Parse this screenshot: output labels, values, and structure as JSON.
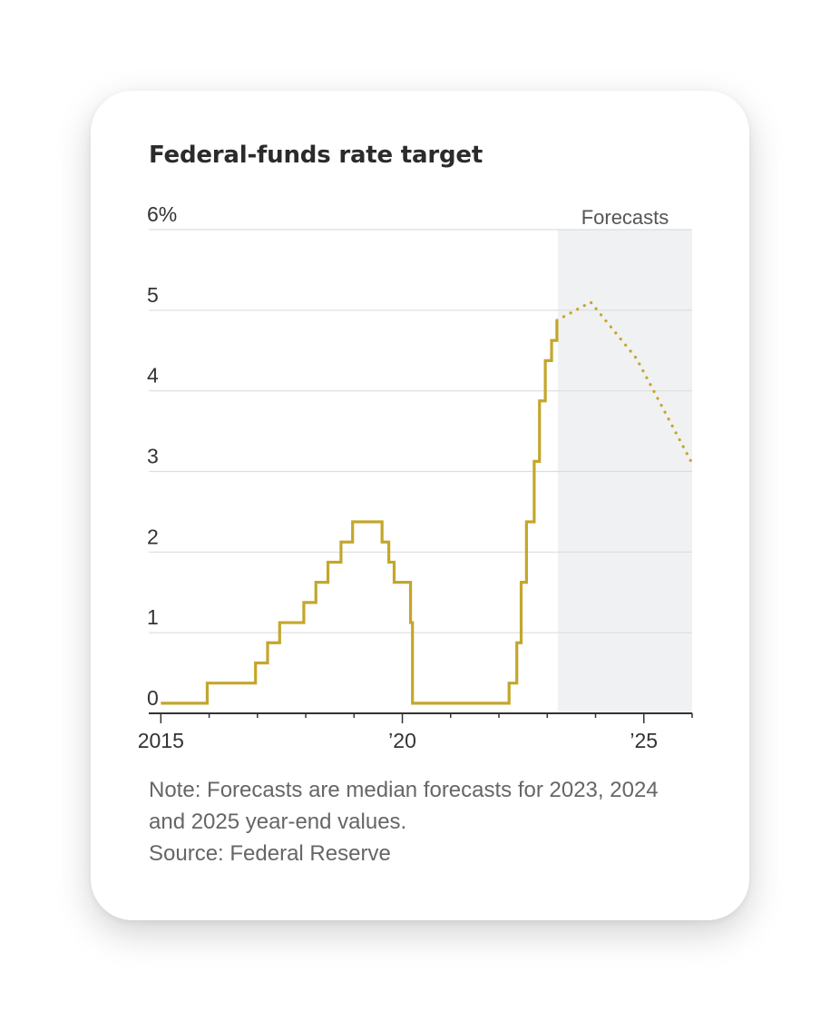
{
  "chart_data": {
    "type": "line",
    "title": "Federal-funds rate target",
    "xlabel": "",
    "ylabel": "",
    "ylim": [
      0,
      6
    ],
    "xlim": [
      2014.75,
      2026.0
    ],
    "y_ticks": [
      {
        "value": 0,
        "label": "0"
      },
      {
        "value": 1,
        "label": "1"
      },
      {
        "value": 2,
        "label": "2"
      },
      {
        "value": 3,
        "label": "3"
      },
      {
        "value": 4,
        "label": "4"
      },
      {
        "value": 5,
        "label": "5"
      },
      {
        "value": 6,
        "label": "6%"
      }
    ],
    "x_ticks": [
      {
        "value": 2015,
        "label": "2015"
      },
      {
        "value": 2020,
        "label": "’20"
      },
      {
        "value": 2025,
        "label": "’25"
      }
    ],
    "x_minor_ticks": [
      2016,
      2017,
      2018,
      2019,
      2021,
      2022,
      2023,
      2024,
      2026
    ],
    "forecast_region": {
      "start": 2023.22,
      "end": 2026.0,
      "label": "Forecasts"
    },
    "series": [
      {
        "name": "Federal-funds rate target",
        "style": "step",
        "color": "#c4a62c",
        "points": [
          {
            "x": 2015.0,
            "y": 0.125
          },
          {
            "x": 2015.96,
            "y": 0.375
          },
          {
            "x": 2016.96,
            "y": 0.625
          },
          {
            "x": 2017.21,
            "y": 0.875
          },
          {
            "x": 2017.46,
            "y": 1.125
          },
          {
            "x": 2017.96,
            "y": 1.375
          },
          {
            "x": 2018.21,
            "y": 1.625
          },
          {
            "x": 2018.46,
            "y": 1.875
          },
          {
            "x": 2018.73,
            "y": 2.125
          },
          {
            "x": 2018.97,
            "y": 2.375
          },
          {
            "x": 2019.58,
            "y": 2.125
          },
          {
            "x": 2019.72,
            "y": 1.875
          },
          {
            "x": 2019.83,
            "y": 1.625
          },
          {
            "x": 2020.17,
            "y": 1.125
          },
          {
            "x": 2020.21,
            "y": 0.125
          },
          {
            "x": 2022.21,
            "y": 0.375
          },
          {
            "x": 2022.37,
            "y": 0.875
          },
          {
            "x": 2022.46,
            "y": 1.625
          },
          {
            "x": 2022.57,
            "y": 2.375
          },
          {
            "x": 2022.73,
            "y": 3.125
          },
          {
            "x": 2022.84,
            "y": 3.875
          },
          {
            "x": 2022.96,
            "y": 4.375
          },
          {
            "x": 2023.09,
            "y": 4.625
          },
          {
            "x": 2023.2,
            "y": 4.875
          }
        ]
      },
      {
        "name": "Median forecast",
        "style": "dotted",
        "color": "#c4a62c",
        "points": [
          {
            "x": 2023.2,
            "y": 4.875
          },
          {
            "x": 2023.9,
            "y": 5.1
          },
          {
            "x": 2024.85,
            "y": 4.4
          },
          {
            "x": 2026.0,
            "y": 3.1
          }
        ]
      }
    ]
  },
  "note": {
    "line1": "Note: Forecasts are median forecasts for 2023, 2024",
    "line2": "and 2025 year-end values.",
    "source": "Source: Federal Reserve"
  },
  "colors": {
    "line": "#c4a62c",
    "forecast_shade": "#f0f1f3",
    "grid": "#dddddd",
    "axis": "#333333"
  }
}
